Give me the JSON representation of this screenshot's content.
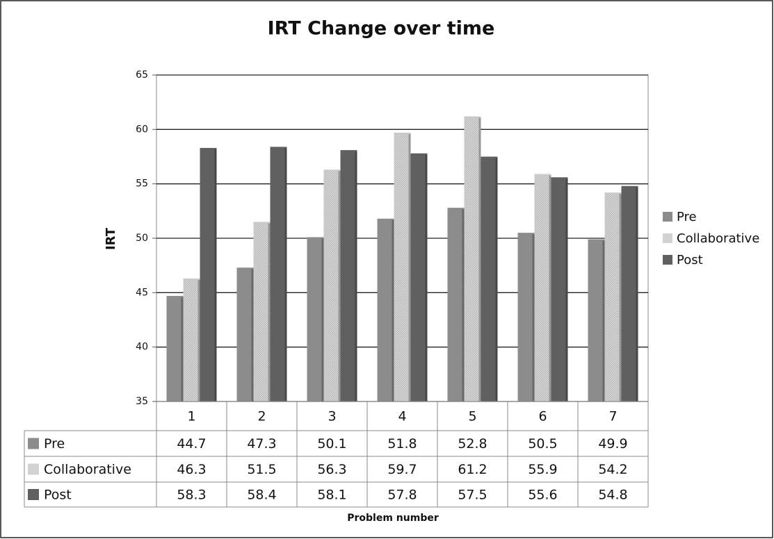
{
  "chart_data": {
    "type": "bar",
    "title": "IRT Change over time",
    "x_label": "Problem number",
    "y_label": "IRT",
    "categories": [
      "1",
      "2",
      "3",
      "4",
      "5",
      "6",
      "7"
    ],
    "series": [
      {
        "name": "Pre",
        "color": "#8c8c8c",
        "values": [
          44.7,
          47.3,
          50.1,
          51.8,
          52.8,
          50.5,
          49.9
        ]
      },
      {
        "name": "Collaborative",
        "color": "#d2d2d2",
        "values": [
          46.3,
          51.5,
          56.3,
          59.7,
          61.2,
          55.9,
          54.2
        ]
      },
      {
        "name": "Post",
        "color": "#606060",
        "values": [
          58.3,
          58.4,
          58.1,
          57.8,
          57.5,
          55.6,
          54.8
        ]
      }
    ],
    "ylim": [
      35,
      65
    ],
    "yticks": [
      35,
      40,
      45,
      50,
      55,
      60,
      65
    ],
    "grid": true,
    "legend": "right"
  }
}
